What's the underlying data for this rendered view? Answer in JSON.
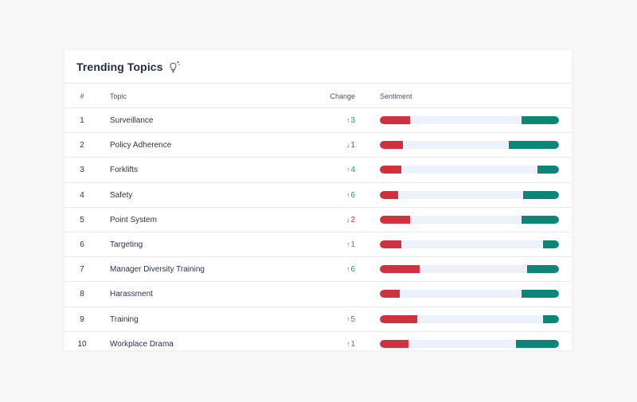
{
  "card": {
    "title": "Trending Topics",
    "icon": "lightbulb-sparkle-icon"
  },
  "table": {
    "headers": {
      "num": "#",
      "topic": "Topic",
      "change": "Change",
      "sentiment": "Sentiment"
    },
    "rows": [
      {
        "num": "1",
        "topic": "Surveillance",
        "change": "3",
        "direction": "up",
        "negative": 0.17,
        "positive": 0.21
      },
      {
        "num": "2",
        "topic": "Policy Adherence",
        "change": "1",
        "direction": "down",
        "negative": 0.13,
        "positive": 0.28
      },
      {
        "num": "3",
        "topic": "Forklifts",
        "change": "4",
        "direction": "up",
        "negative": 0.12,
        "positive": 0.12
      },
      {
        "num": "4",
        "topic": "Safety",
        "change": "6",
        "direction": "up",
        "negative": 0.1,
        "positive": 0.2
      },
      {
        "num": "5",
        "topic": "Point System",
        "change": "2",
        "direction": "down",
        "negative": 0.17,
        "positive": 0.21
      },
      {
        "num": "6",
        "topic": "Targeting",
        "change": "1",
        "direction": "up",
        "negative": 0.12,
        "positive": 0.09
      },
      {
        "num": "7",
        "topic": "Manager Diversity Training",
        "change": "6",
        "direction": "up",
        "negative": 0.22,
        "positive": 0.18
      },
      {
        "num": "8",
        "topic": "Harassment",
        "change": "",
        "direction": "none",
        "negative": 0.11,
        "positive": 0.21
      },
      {
        "num": "9",
        "topic": "Training",
        "change": "5",
        "direction": "up",
        "negative": 0.21,
        "positive": 0.09
      },
      {
        "num": "10",
        "topic": "Workplace Drama",
        "change": "1",
        "direction": "up",
        "negative": 0.16,
        "positive": 0.24
      }
    ]
  },
  "colors": {
    "negative": "#d0313f",
    "positive": "#0b8577",
    "neutral": "#edf1fb",
    "change_up": "#1e9e6a",
    "change_down": "#d0313f"
  }
}
